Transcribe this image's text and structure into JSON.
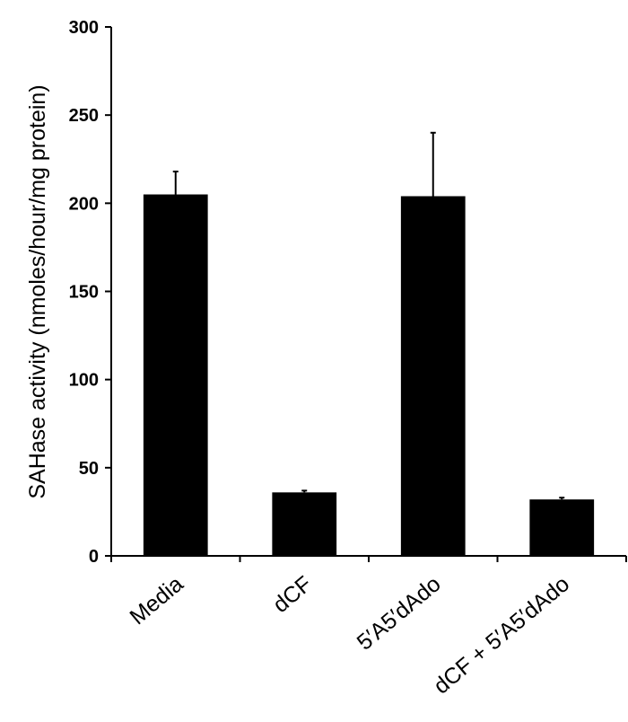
{
  "chart_data": {
    "type": "bar",
    "categories": [
      "Media",
      "dCF",
      "5′A5′dAdo",
      "dCF + 5′A5′dAdo"
    ],
    "values": [
      205,
      36,
      204,
      32
    ],
    "errors": [
      13,
      1,
      36,
      1
    ],
    "ylabel": "SAHase activity (nmoles/hour/mg protein)",
    "ylim": [
      0,
      300
    ],
    "yticks": [
      0,
      50,
      100,
      150,
      200,
      250,
      300
    ],
    "grid": false,
    "legend": "none",
    "bar_color": "#000000"
  }
}
